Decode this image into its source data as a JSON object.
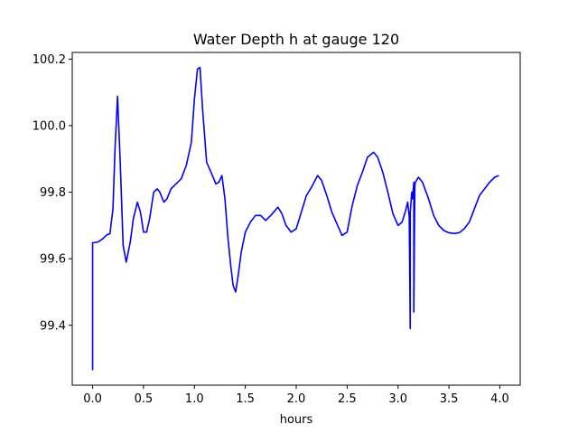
{
  "chart_data": {
    "type": "line",
    "title": "Water Depth h at gauge 120",
    "xlabel": "hours",
    "ylabel": "",
    "xlim": [
      -0.2,
      4.2
    ],
    "ylim": [
      99.22,
      100.22
    ],
    "xticks": [
      0.0,
      0.5,
      1.0,
      1.5,
      2.0,
      2.5,
      3.0,
      3.5,
      4.0
    ],
    "xtick_labels": [
      "0.0",
      "0.5",
      "1.0",
      "1.5",
      "2.0",
      "2.5",
      "3.0",
      "3.5",
      "4.0"
    ],
    "yticks": [
      99.4,
      99.6,
      99.8,
      100.0,
      100.2
    ],
    "ytick_labels": [
      "99.4",
      "99.6",
      "99.8",
      "100.0",
      "100.2"
    ],
    "grid": false,
    "series_color": "#0000ff",
    "x": [
      0.0,
      0.0,
      0.0,
      0.05,
      0.1,
      0.14,
      0.17,
      0.2,
      0.22,
      0.245,
      0.27,
      0.3,
      0.33,
      0.37,
      0.4,
      0.44,
      0.47,
      0.5,
      0.53,
      0.56,
      0.6,
      0.635,
      0.66,
      0.7,
      0.73,
      0.77,
      0.82,
      0.87,
      0.92,
      0.97,
      1.0,
      1.03,
      1.055,
      1.08,
      1.12,
      1.17,
      1.21,
      1.24,
      1.27,
      1.3,
      1.33,
      1.36,
      1.38,
      1.405,
      1.43,
      1.46,
      1.5,
      1.55,
      1.6,
      1.65,
      1.7,
      1.75,
      1.82,
      1.86,
      1.9,
      1.95,
      2.0,
      2.05,
      2.1,
      2.15,
      2.21,
      2.25,
      2.3,
      2.35,
      2.4,
      2.45,
      2.5,
      2.55,
      2.6,
      2.65,
      2.7,
      2.76,
      2.8,
      2.85,
      2.9,
      2.95,
      3.0,
      3.04,
      3.07,
      3.095,
      3.11,
      3.12,
      3.12,
      3.135,
      3.14,
      3.15,
      3.155,
      3.155,
      3.165,
      3.17,
      3.2,
      3.24,
      3.3,
      3.35,
      3.4,
      3.45,
      3.5,
      3.55,
      3.6,
      3.65,
      3.7,
      3.75,
      3.8,
      3.85,
      3.9,
      3.95,
      3.99
    ],
    "y": [
      99.265,
      99.645,
      99.648,
      99.65,
      99.66,
      99.672,
      99.675,
      99.75,
      99.93,
      100.088,
      99.9,
      99.64,
      99.59,
      99.65,
      99.72,
      99.77,
      99.74,
      99.68,
      99.68,
      99.72,
      99.8,
      99.81,
      99.8,
      99.77,
      99.78,
      99.81,
      99.825,
      99.84,
      99.88,
      99.95,
      100.08,
      100.17,
      100.175,
      100.05,
      99.89,
      99.855,
      99.825,
      99.83,
      99.85,
      99.78,
      99.66,
      99.57,
      99.52,
      99.5,
      99.55,
      99.62,
      99.68,
      99.71,
      99.73,
      99.73,
      99.715,
      99.73,
      99.755,
      99.735,
      99.7,
      99.68,
      99.69,
      99.74,
      99.79,
      99.815,
      99.85,
      99.835,
      99.79,
      99.74,
      99.705,
      99.67,
      99.68,
      99.76,
      99.82,
      99.86,
      99.905,
      99.92,
      99.905,
      99.86,
      99.8,
      99.735,
      99.7,
      99.71,
      99.74,
      99.77,
      99.725,
      99.39,
      99.74,
      99.8,
      99.78,
      99.81,
      99.83,
      99.44,
      99.82,
      99.83,
      99.845,
      99.83,
      99.78,
      99.73,
      99.7,
      99.685,
      99.678,
      99.676,
      99.678,
      99.69,
      99.71,
      99.75,
      99.79,
      99.81,
      99.83,
      99.845,
      99.85
    ]
  }
}
